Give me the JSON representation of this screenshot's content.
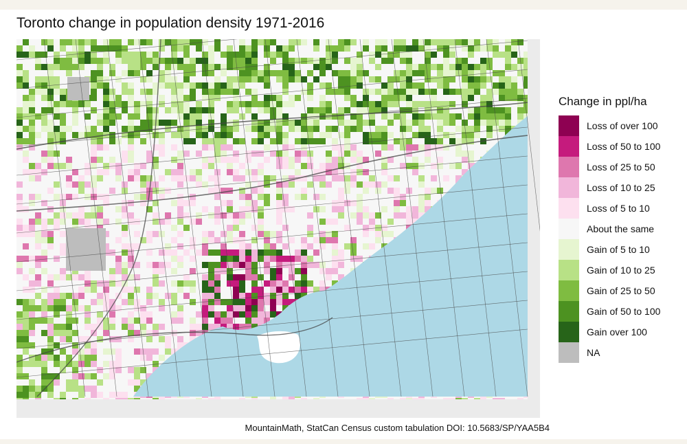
{
  "title": "Toronto change in population density 1971-2016",
  "legend": {
    "title": "Change in ppl/ha",
    "items": [
      {
        "label": "Loss of over 100",
        "color": "#8e0152"
      },
      {
        "label": "Loss of 50 to 100",
        "color": "#c51b7d"
      },
      {
        "label": "Loss of 25 to 50",
        "color": "#de77ae"
      },
      {
        "label": "Loss of 10 to 25",
        "color": "#f1b6da"
      },
      {
        "label": "Loss of 5 to 10",
        "color": "#fde0ef"
      },
      {
        "label": "About the same",
        "color": "#f7f7f7"
      },
      {
        "label": "Gain of 5  to 10",
        "color": "#e6f5d0"
      },
      {
        "label": "Gain of 10 to 25",
        "color": "#b8e186"
      },
      {
        "label": "Gain of 25 to 50",
        "color": "#7fbc41"
      },
      {
        "label": "Gain of 50 to 100",
        "color": "#4d9221"
      },
      {
        "label": "Gain over 100",
        "color": "#276419"
      },
      {
        "label": "NA",
        "color": "#bdbdbd"
      }
    ]
  },
  "map": {
    "water_color": "#add8e6",
    "land_color": "#f2f2f2",
    "road_color": "#444444"
  },
  "caption": "MountainMath, StatCan Census custom tabulation DOI: 10.5683/SP/YAA5B4"
}
